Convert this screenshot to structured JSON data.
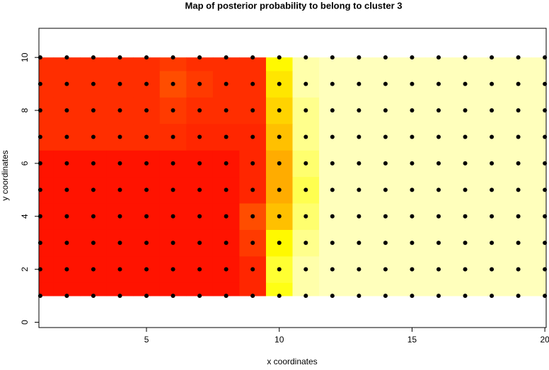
{
  "chart_data": {
    "type": "heatmap",
    "title": "Map of posterior probability to belong to cluster  3",
    "x_label": "x coordinates",
    "y_label": "y coordinates",
    "x": [
      1,
      2,
      3,
      4,
      5,
      6,
      7,
      8,
      9,
      10,
      11,
      12,
      13,
      14,
      15,
      16,
      17,
      18,
      19,
      20
    ],
    "y": [
      1,
      2,
      3,
      4,
      5,
      6,
      7,
      8,
      9,
      10
    ],
    "z": [
      [
        0.05,
        0.05,
        0.05,
        0.05,
        0.05,
        0.05,
        0.05,
        0.05,
        0.1,
        0.7,
        0.95,
        0.98,
        0.98,
        0.98,
        0.98,
        0.98,
        0.98,
        0.98,
        0.98,
        0.98
      ],
      [
        0.05,
        0.05,
        0.05,
        0.05,
        0.05,
        0.05,
        0.05,
        0.05,
        0.1,
        0.75,
        0.95,
        0.98,
        0.98,
        0.98,
        0.98,
        0.98,
        0.98,
        0.98,
        0.98,
        0.98
      ],
      [
        0.05,
        0.05,
        0.05,
        0.05,
        0.05,
        0.05,
        0.05,
        0.05,
        0.15,
        0.65,
        0.9,
        0.98,
        0.98,
        0.98,
        0.98,
        0.98,
        0.98,
        0.98,
        0.98,
        0.98
      ],
      [
        0.05,
        0.05,
        0.05,
        0.05,
        0.05,
        0.05,
        0.05,
        0.05,
        0.2,
        0.5,
        0.85,
        0.98,
        0.98,
        0.98,
        0.98,
        0.98,
        0.98,
        0.98,
        0.98,
        0.98
      ],
      [
        0.05,
        0.05,
        0.05,
        0.05,
        0.05,
        0.05,
        0.05,
        0.05,
        0.1,
        0.45,
        0.8,
        0.98,
        0.98,
        0.98,
        0.98,
        0.98,
        0.98,
        0.98,
        0.98,
        0.98
      ],
      [
        0.05,
        0.05,
        0.05,
        0.05,
        0.05,
        0.05,
        0.05,
        0.05,
        0.1,
        0.45,
        0.85,
        0.98,
        0.98,
        0.98,
        0.98,
        0.98,
        0.98,
        0.98,
        0.98,
        0.98
      ],
      [
        0.12,
        0.12,
        0.12,
        0.12,
        0.12,
        0.12,
        0.1,
        0.1,
        0.1,
        0.5,
        0.9,
        0.98,
        0.98,
        0.98,
        0.98,
        0.98,
        0.98,
        0.98,
        0.98,
        0.98
      ],
      [
        0.12,
        0.12,
        0.12,
        0.12,
        0.12,
        0.15,
        0.12,
        0.12,
        0.12,
        0.55,
        0.9,
        0.98,
        0.98,
        0.98,
        0.98,
        0.98,
        0.98,
        0.98,
        0.98,
        0.98
      ],
      [
        0.12,
        0.12,
        0.12,
        0.12,
        0.12,
        0.2,
        0.15,
        0.12,
        0.12,
        0.6,
        0.95,
        0.98,
        0.98,
        0.98,
        0.98,
        0.98,
        0.98,
        0.98,
        0.98,
        0.98
      ],
      [
        0.12,
        0.12,
        0.12,
        0.12,
        0.12,
        0.15,
        0.12,
        0.12,
        0.12,
        0.65,
        0.95,
        0.98,
        0.98,
        0.98,
        0.98,
        0.98,
        0.98,
        0.98,
        0.98,
        0.98
      ]
    ],
    "colors": [
      "#ff0000",
      "#ff8000",
      "#ffff00",
      "#ffffc8"
    ],
    "point_color": "#000000",
    "xlim": [
      0.95,
      20.05
    ],
    "ylim": [
      -0.2,
      11.1
    ],
    "xticks": [
      5,
      10,
      15,
      20
    ],
    "yticks": [
      0,
      2,
      4,
      6,
      8,
      10
    ]
  }
}
